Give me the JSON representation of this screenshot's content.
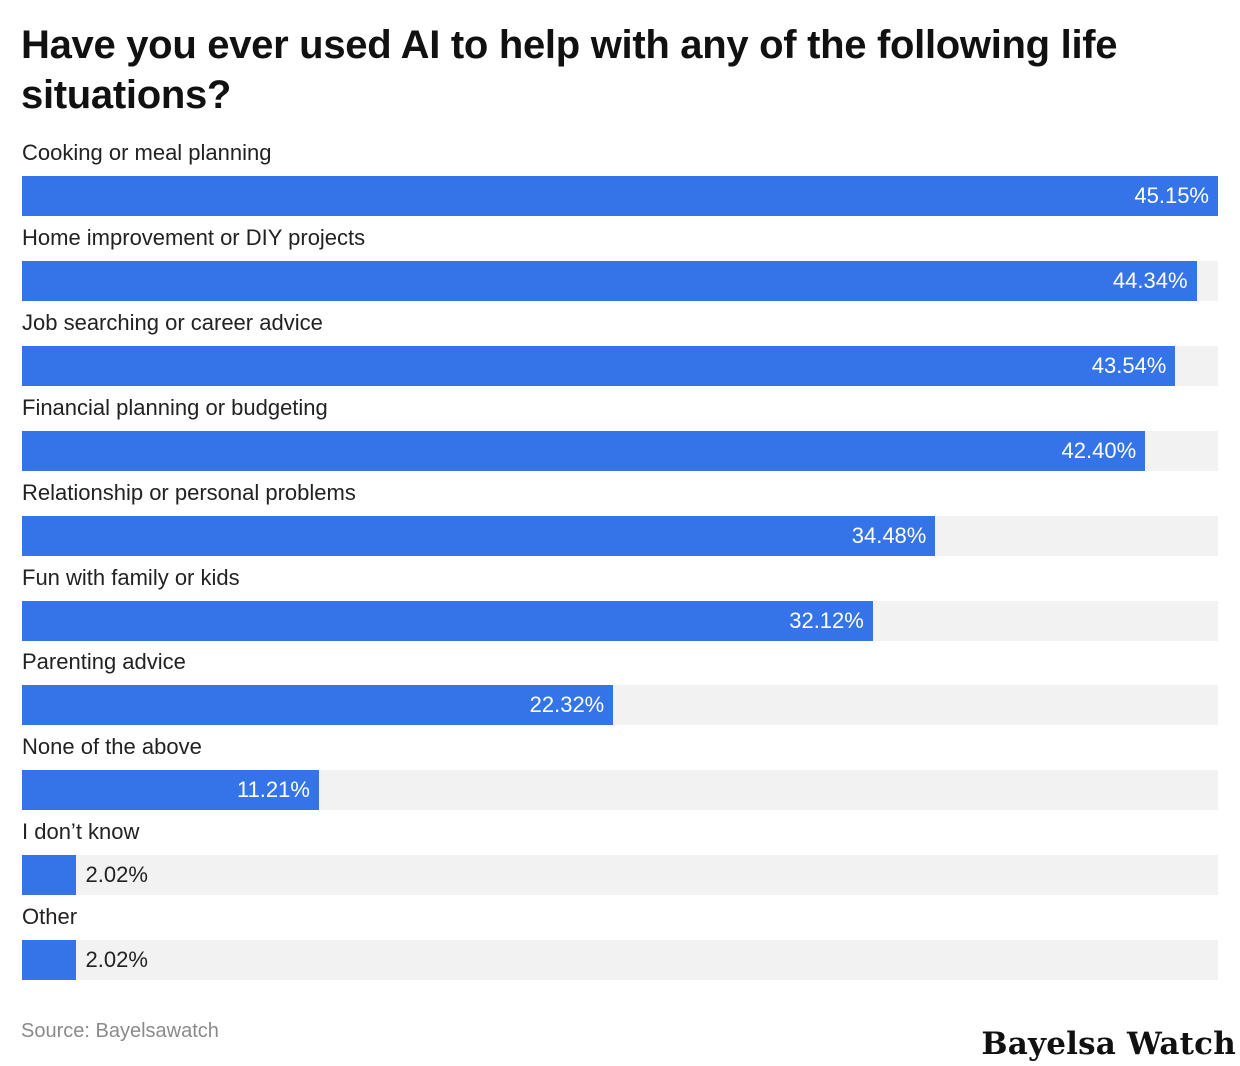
{
  "title": "Have you ever used AI to help with any of the following life situations?",
  "source": "Source: Bayelsawatch",
  "logo": "Bayelsa Watch",
  "colors": {
    "bar": "#3474e8",
    "track": "#f2f2f2",
    "label_inside": "#ffffff",
    "label_outside": "#222222"
  },
  "chart_data": {
    "type": "bar",
    "orientation": "horizontal",
    "title": "Have you ever used AI to help with any of the following life situations?",
    "categories": [
      "Cooking or meal planning",
      "Home improvement or DIY projects",
      "Job searching or career advice",
      "Financial planning or budgeting",
      "Relationship or personal problems",
      "Fun with family or kids",
      "Parenting advice",
      "None of the above",
      "I don’t know",
      "Other"
    ],
    "values": [
      45.15,
      44.34,
      43.54,
      42.4,
      34.48,
      32.12,
      22.32,
      11.21,
      2.02,
      2.02
    ],
    "value_labels": [
      "45.15%",
      "44.34%",
      "43.54%",
      "42.40%",
      "34.48%",
      "32.12%",
      "22.32%",
      "11.21%",
      "2.02%",
      "2.02%"
    ],
    "xlim": [
      0,
      45.15
    ],
    "grid": false,
    "legend": "none"
  }
}
